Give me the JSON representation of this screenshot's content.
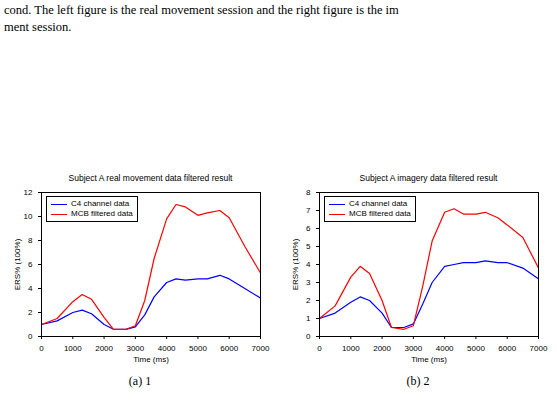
{
  "caption": [
    "cond. The left figure is the real movement session and the right figure is the im",
    "ment session."
  ],
  "chart_data": [
    {
      "type": "line",
      "title": "Subject A real movement data filtered result",
      "x_label": "Time (ms)",
      "y_label": "ERS% (100%)",
      "x": [
        0,
        500,
        1000,
        1300,
        1600,
        2000,
        2300,
        2700,
        3000,
        3300,
        3600,
        4000,
        4300,
        4600,
        5000,
        5300,
        5700,
        6000,
        6500,
        7000
      ],
      "series": [
        {
          "name": "C4 channel data",
          "color": "#0000ff",
          "values": [
            1.0,
            1.3,
            2.0,
            2.2,
            1.9,
            1.0,
            0.6,
            0.6,
            0.8,
            1.8,
            3.3,
            4.5,
            4.8,
            4.7,
            4.8,
            4.8,
            5.1,
            4.8,
            4.0,
            3.2
          ]
        },
        {
          "name": "MCB filtered data",
          "color": "#ff0000",
          "values": [
            1.0,
            1.5,
            2.9,
            3.5,
            3.1,
            1.6,
            0.6,
            0.6,
            0.9,
            3.0,
            6.5,
            9.8,
            11.0,
            10.8,
            10.1,
            10.3,
            10.5,
            9.9,
            7.5,
            5.3
          ]
        }
      ],
      "xlim": [
        0,
        7000
      ],
      "xticks": [
        0,
        1000,
        2000,
        3000,
        4000,
        5000,
        6000,
        7000
      ],
      "ylim": [
        0,
        12
      ],
      "yticks": [
        0,
        2,
        4,
        6,
        8,
        10,
        12
      ],
      "grid": false,
      "legend": "upper left",
      "caption": "(a) 1"
    },
    {
      "type": "line",
      "title": "Subject A imagery data filtered result",
      "x_label": "Time (ms)",
      "y_label": "ERS% (100%)",
      "x": [
        0,
        500,
        1000,
        1300,
        1600,
        2000,
        2300,
        2700,
        3000,
        3300,
        3600,
        4000,
        4300,
        4600,
        5000,
        5300,
        5700,
        6000,
        6500,
        7000
      ],
      "series": [
        {
          "name": "C4 channel data",
          "color": "#0000ff",
          "values": [
            1.0,
            1.3,
            1.9,
            2.2,
            2.0,
            1.3,
            0.5,
            0.5,
            0.7,
            1.8,
            3.0,
            3.9,
            4.0,
            4.1,
            4.1,
            4.2,
            4.1,
            4.1,
            3.8,
            3.2
          ]
        },
        {
          "name": "MCB filtered data",
          "color": "#ff0000",
          "values": [
            1.0,
            1.7,
            3.3,
            3.9,
            3.5,
            2.0,
            0.5,
            0.4,
            0.6,
            2.8,
            5.3,
            6.9,
            7.1,
            6.8,
            6.8,
            6.9,
            6.6,
            6.2,
            5.5,
            3.8
          ]
        }
      ],
      "xlim": [
        0,
        7000
      ],
      "xticks": [
        0,
        1000,
        2000,
        3000,
        4000,
        5000,
        6000,
        7000
      ],
      "ylim": [
        0,
        8
      ],
      "yticks": [
        0,
        1,
        2,
        3,
        4,
        5,
        6,
        7,
        8
      ],
      "grid": false,
      "legend": "upper left",
      "caption": "(b) 2"
    }
  ]
}
